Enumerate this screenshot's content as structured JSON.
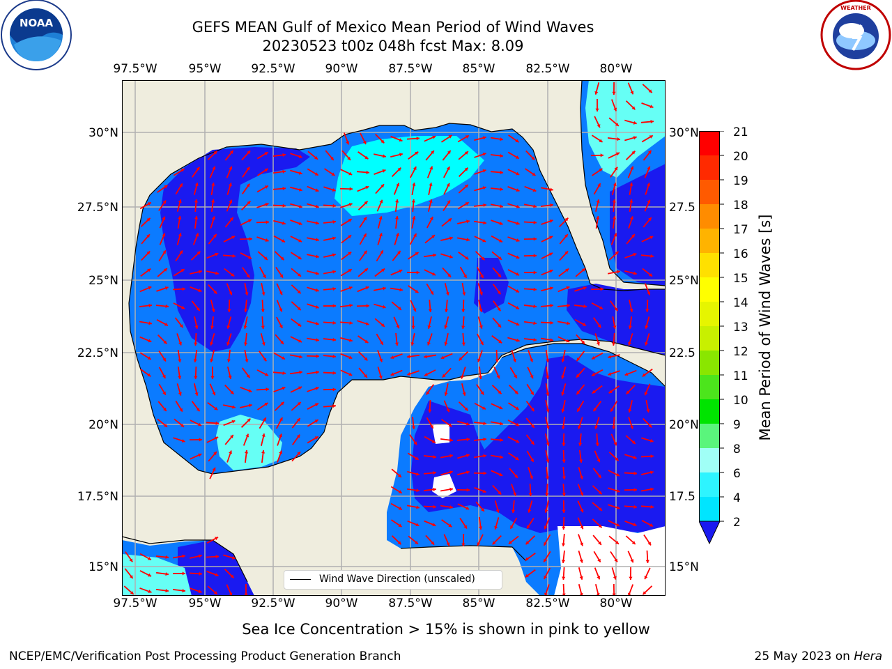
{
  "title_line1": "GEFS MEAN Gulf of Mexico Mean Period of Wind Waves",
  "title_line2": "20230523 t00z 048h fcst   Max: 8.09",
  "top_lon_labels": [
    "97.5°W",
    "95°W",
    "92.5°W",
    "90°W",
    "87.5°W",
    "85°W",
    "82.5°W",
    "80°W"
  ],
  "bottom_lon_labels": [
    "97.5°W",
    "95°W",
    "92.5°W",
    "90°W",
    "87.5°W",
    "85°W",
    "82.5°W",
    "80°W"
  ],
  "left_lat_labels": [
    "30°N",
    "27.5°N",
    "25°N",
    "22.5°N",
    "20°N",
    "17.5°N",
    "15°N"
  ],
  "right_lat_labels": [
    "30°N",
    "27.5",
    "25°N",
    "22.5",
    "20°N",
    "17.5",
    "15°N"
  ],
  "legend_text": "Wind Wave Direction (unscaled)",
  "colorbar": {
    "title": "Mean Period of Wind Waves [s]",
    "tick_labels": [
      "2",
      "4",
      "6",
      "8",
      "9",
      "10",
      "11",
      "12",
      "13",
      "14",
      "15",
      "16",
      "17",
      "18",
      "19",
      "20",
      "21"
    ],
    "colors": [
      "#0b7bff",
      "#00e5ff",
      "#2ef4ff",
      "#66f8ff",
      "#a0fff6",
      "#5af57c",
      "#00e400",
      "#4ce51c",
      "#8ae600",
      "#c8f000",
      "#e6f500",
      "#ffff00",
      "#ffe000",
      "#ffb300",
      "#ff8c00",
      "#ff5a00",
      "#ff2a00",
      "#ff0000"
    ],
    "extend_color": "#1a1af0"
  },
  "map_colors": {
    "land": "#efedde",
    "ocean_2_4": "#0b7bff",
    "ocean_below_2": "#1a1af0",
    "ocean_4_6": "#00ffff",
    "ocean_6_8": "#66fff5",
    "arrow": "#ff0000",
    "gridline": "#b0b0b0"
  },
  "subnote": "Sea Ice Concentration > 15% is shown in pink to yellow",
  "footer_left": "NCEP/EMC/Verification Post Processing Product Generation Branch",
  "footer_right_prefix": "25 May 2023 on ",
  "footer_right_host": "Hera",
  "logos": {
    "left": {
      "name": "noaa-logo",
      "text": "NOAA"
    },
    "right": {
      "name": "nws-logo",
      "text": "NATIONAL WEATHER SERVICE"
    }
  }
}
